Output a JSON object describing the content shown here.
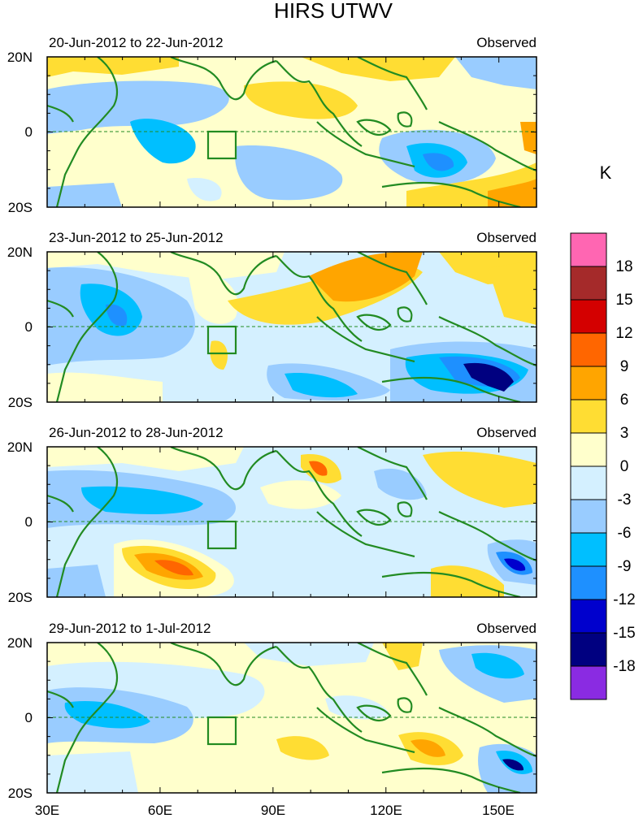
{
  "title": "HIRS UTWV",
  "unit_label": "K",
  "x_axis": {
    "ticks": [
      "30E",
      "60E",
      "90E",
      "120E",
      "150E"
    ],
    "lon_values": [
      30,
      60,
      90,
      120,
      150
    ],
    "lon_range": [
      30,
      160
    ]
  },
  "y_axis": {
    "ticks": [
      "20N",
      "0",
      "20S"
    ],
    "lat_values": [
      20,
      0,
      -20
    ],
    "lat_range": [
      -20,
      20
    ]
  },
  "colorbar": {
    "labels": [
      "18",
      "15",
      "12",
      "9",
      "6",
      "3",
      "0",
      "-3",
      "-6",
      "-9",
      "-12",
      "-15",
      "-18"
    ],
    "colors": [
      "#ff66b2",
      "#a52a2a",
      "#d40000",
      "#ff6600",
      "#ffa500",
      "#ffdd33",
      "#ffffcc",
      "#d4f0ff",
      "#99ccff",
      "#00bfff",
      "#1e90ff",
      "#0000cd",
      "#000080",
      "#8a2be2"
    ]
  },
  "panels": [
    {
      "date_range": "20-Jun-2012 to 22-Jun-2012",
      "label": "Observed"
    },
    {
      "date_range": "23-Jun-2012 to 25-Jun-2012",
      "label": "Observed"
    },
    {
      "date_range": "26-Jun-2012 to 28-Jun-2012",
      "label": "Observed"
    },
    {
      "date_range": "29-Jun-2012 to 1-Jul-2012",
      "label": "Observed"
    }
  ],
  "colors": {
    "coastline": "#228b22",
    "frame": "#000000"
  }
}
